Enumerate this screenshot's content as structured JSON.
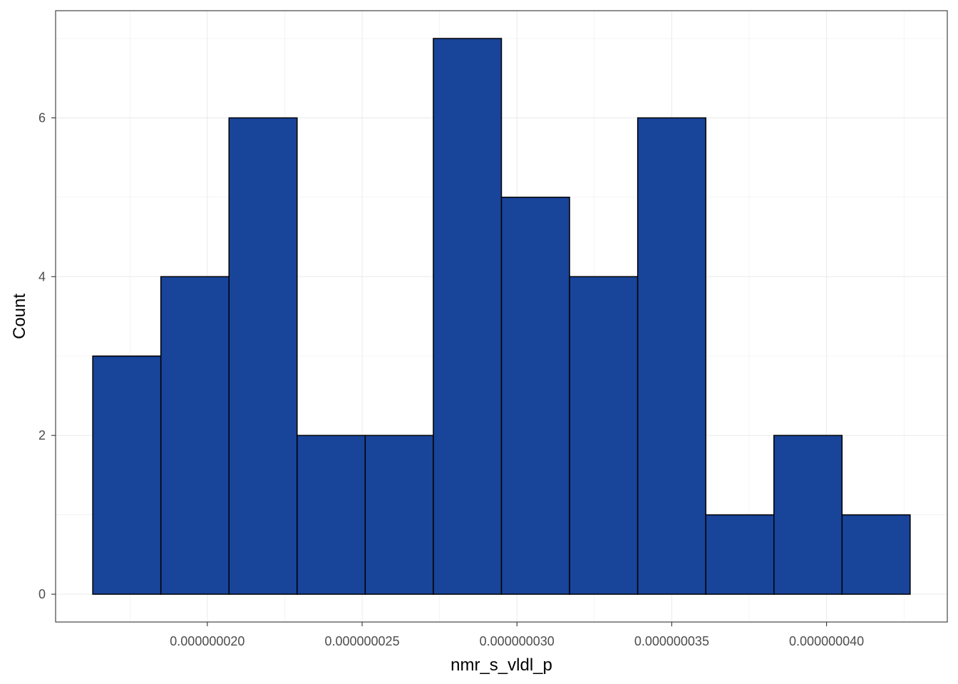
{
  "chart_data": {
    "type": "bar",
    "subtype": "histogram",
    "title": "",
    "xlabel": "nmr_s_vldl_p",
    "ylabel": "Count",
    "bins": [
      {
        "x0": 1.63e-08,
        "x1": 1.85e-08,
        "count": 3
      },
      {
        "x0": 1.85e-08,
        "x1": 2.07e-08,
        "count": 4
      },
      {
        "x0": 2.07e-08,
        "x1": 2.29e-08,
        "count": 6
      },
      {
        "x0": 2.29e-08,
        "x1": 2.51e-08,
        "count": 2
      },
      {
        "x0": 2.51e-08,
        "x1": 2.73e-08,
        "count": 2
      },
      {
        "x0": 2.73e-08,
        "x1": 2.95e-08,
        "count": 7
      },
      {
        "x0": 2.95e-08,
        "x1": 3.17e-08,
        "count": 5
      },
      {
        "x0": 3.17e-08,
        "x1": 3.39e-08,
        "count": 4
      },
      {
        "x0": 3.39e-08,
        "x1": 3.61e-08,
        "count": 6
      },
      {
        "x0": 3.61e-08,
        "x1": 3.83e-08,
        "count": 1
      },
      {
        "x0": 3.83e-08,
        "x1": 4.05e-08,
        "count": 2
      },
      {
        "x0": 4.05e-08,
        "x1": 4.27e-08,
        "count": 1
      }
    ],
    "xlim": [
      1.51e-08,
      4.39e-08
    ],
    "ylim": [
      -0.35,
      7.35
    ],
    "x_ticks": [
      {
        "value": 2e-08,
        "label": "0.000000020"
      },
      {
        "value": 2.5e-08,
        "label": "0.000000025"
      },
      {
        "value": 3e-08,
        "label": "0.000000030"
      },
      {
        "value": 3.5e-08,
        "label": "0.000000035"
      },
      {
        "value": 4e-08,
        "label": "0.000000040"
      }
    ],
    "y_ticks": [
      0,
      2,
      4,
      6
    ],
    "grid": true,
    "legend": "none",
    "colors": {
      "bar_fill": "#18449a",
      "bar_stroke": "#000000",
      "grid": "#ebebeb",
      "panel_border": "#333333"
    }
  }
}
